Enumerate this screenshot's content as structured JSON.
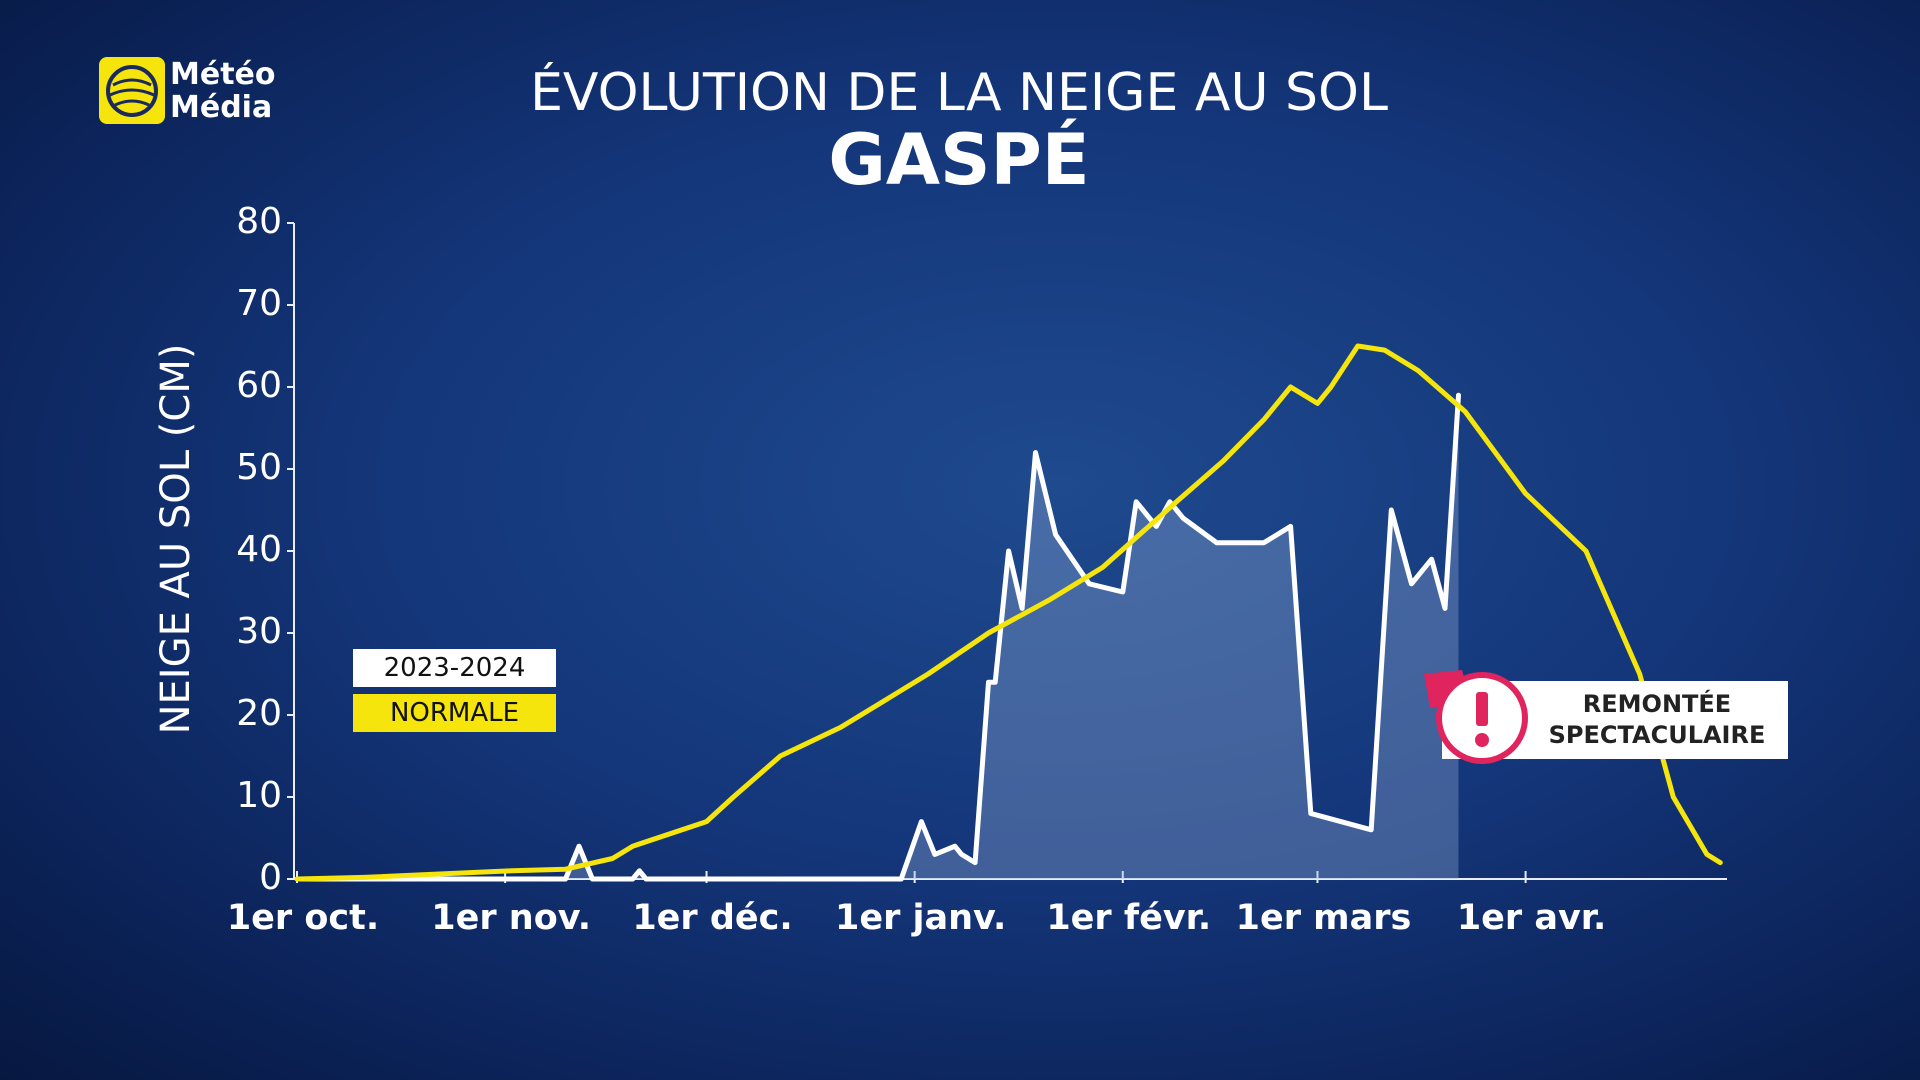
{
  "brand": [
    "Météo",
    "Média"
  ],
  "chart_data": {
    "type": "line",
    "title": "ÉVOLUTION DE LA NEIGE AU SOL",
    "subtitle": "GASPÉ",
    "y_label": "NEIGE AU SOL (CM)",
    "xlim": [
      0,
      213
    ],
    "xticks": [
      {
        "value": 0,
        "label": "1er oct."
      },
      {
        "value": 31,
        "label": "1er nov."
      },
      {
        "value": 61,
        "label": "1er déc."
      },
      {
        "value": 92,
        "label": "1er janv."
      },
      {
        "value": 123,
        "label": "1er févr."
      },
      {
        "value": 152,
        "label": "1er mars"
      },
      {
        "value": 183,
        "label": "1er avr."
      }
    ],
    "ylim": [
      0,
      80
    ],
    "yticks": [
      0,
      10,
      20,
      30,
      40,
      50,
      60,
      70,
      80
    ],
    "series": [
      {
        "name": "2023-2024",
        "color": "#ffffff",
        "fill": true,
        "x": [
          0,
          40,
          42,
          44,
          50,
          51,
          52,
          90,
          93,
          95,
          98,
          99,
          101,
          103,
          104,
          106,
          108,
          110,
          113,
          118,
          123,
          125,
          128,
          130,
          132,
          137,
          144,
          148,
          151,
          160,
          163,
          166,
          169,
          171,
          173
        ],
        "values": [
          0,
          0,
          4,
          0,
          0,
          1,
          0,
          0,
          7,
          3,
          4,
          3,
          2,
          24,
          24,
          40,
          33,
          52,
          42,
          36,
          35,
          46,
          43,
          46,
          44,
          41,
          41,
          43,
          8,
          6,
          45,
          36,
          39,
          33,
          59
        ]
      },
      {
        "name": "NORMALE",
        "color": "#f5e50c",
        "fill": false,
        "x": [
          0,
          10,
          32,
          40,
          47,
          50,
          61,
          65,
          72,
          81,
          94,
          103,
          112,
          120,
          131,
          138,
          144,
          148,
          152,
          154,
          158,
          162,
          167,
          174,
          183,
          192,
          200,
          205,
          210,
          212
        ],
        "values": [
          0,
          0.2,
          1,
          1.2,
          2.5,
          4,
          7,
          10,
          15,
          18.5,
          25,
          30,
          34,
          38,
          46,
          51,
          56,
          60,
          58,
          60,
          65,
          64.5,
          62,
          57,
          47,
          40,
          25,
          10,
          3,
          2
        ]
      }
    ],
    "annotation": "REMONTÉE SPECTACULAIRE"
  }
}
